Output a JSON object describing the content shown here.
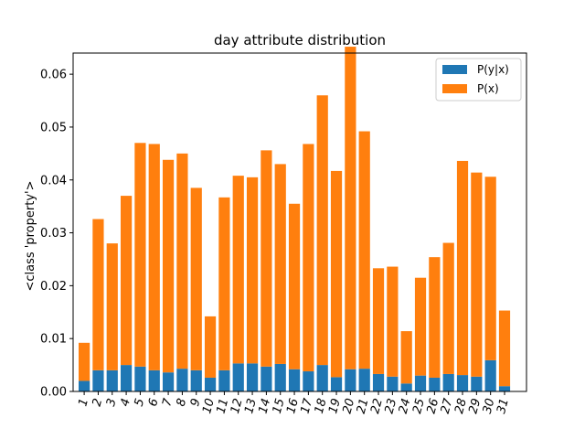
{
  "chart_data": {
    "type": "bar",
    "stacked": true,
    "title": "day attribute distribution",
    "xlabel": "",
    "ylabel": "<class 'property'>",
    "categories": [
      "1",
      "2",
      "3",
      "4",
      "5",
      "6",
      "7",
      "8",
      "9",
      "10",
      "11",
      "12",
      "13",
      "14",
      "15",
      "16",
      "17",
      "18",
      "19",
      "20",
      "21",
      "22",
      "23",
      "24",
      "25",
      "26",
      "27",
      "28",
      "29",
      "30",
      "31"
    ],
    "ylim": [
      0,
      0.064
    ],
    "yticks": [
      0.0,
      0.01,
      0.02,
      0.03,
      0.04,
      0.05,
      0.06
    ],
    "ytick_labels": [
      "0.00",
      "0.01",
      "0.02",
      "0.03",
      "0.04",
      "0.05",
      "0.06"
    ],
    "grid": false,
    "legend_position": "top-right",
    "series": [
      {
        "name": "P(y|x)",
        "color": "#1f77b4",
        "values": [
          0.002,
          0.004,
          0.004,
          0.005,
          0.0047,
          0.004,
          0.0036,
          0.0043,
          0.004,
          0.0026,
          0.004,
          0.0053,
          0.0053,
          0.0047,
          0.0052,
          0.0042,
          0.0038,
          0.005,
          0.0027,
          0.0042,
          0.0043,
          0.0033,
          0.0028,
          0.0015,
          0.003,
          0.0026,
          0.0033,
          0.0031,
          0.0028,
          0.0059,
          0.001
        ]
      },
      {
        "name": "P(x)",
        "color": "#ff7f0e",
        "values": [
          0.0072,
          0.0286,
          0.024,
          0.032,
          0.0423,
          0.0428,
          0.0402,
          0.0407,
          0.0345,
          0.0116,
          0.0327,
          0.0355,
          0.0352,
          0.0409,
          0.0378,
          0.0313,
          0.043,
          0.051,
          0.039,
          0.061,
          0.0449,
          0.02,
          0.0208,
          0.0099,
          0.0185,
          0.0228,
          0.0248,
          0.0405,
          0.0386,
          0.0347,
          0.0143
        ]
      }
    ]
  }
}
